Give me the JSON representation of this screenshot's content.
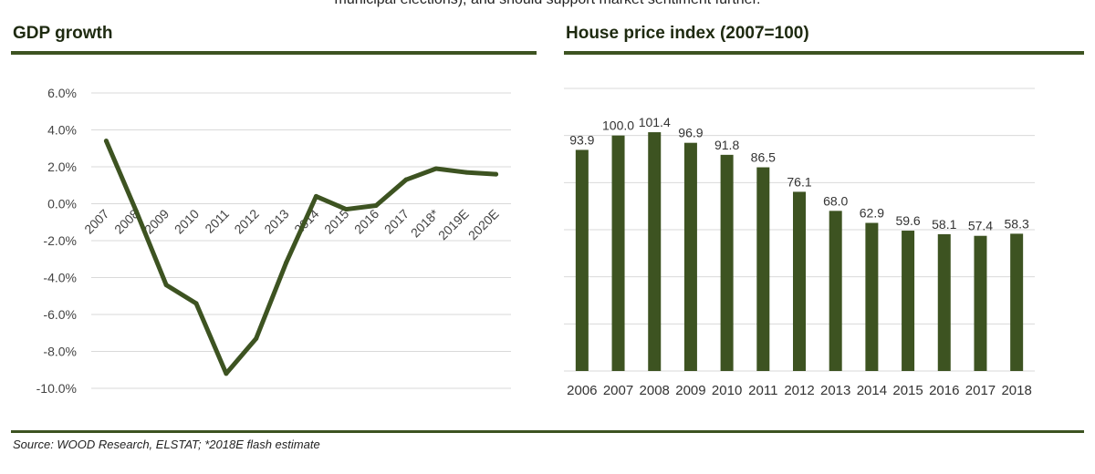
{
  "header": {
    "top_text": "municipal elections), and should support market sentiment further.",
    "left_title": "GDP growth",
    "right_title": "House price index (2007=100)"
  },
  "footer": {
    "source": "Source: WOOD Research, ELSTAT; *2018E flash estimate"
  },
  "colors": {
    "series": "#3d5321",
    "grid": "#d9d9d9",
    "rule": "#3d5321"
  },
  "chart_data": [
    {
      "type": "line",
      "title": "GDP growth",
      "categories": [
        "2007",
        "2008",
        "2009",
        "2010",
        "2011",
        "2012",
        "2013",
        "2014",
        "2015",
        "2016",
        "2017",
        "2018*",
        "2019E",
        "2020E"
      ],
      "values": [
        3.4,
        -0.4,
        -4.4,
        -5.4,
        -9.2,
        -7.3,
        -3.2,
        0.4,
        -0.3,
        -0.1,
        1.3,
        1.9,
        1.7,
        1.6
      ],
      "ylim": [
        -10,
        6
      ],
      "yticks": [
        "6.0%",
        "4.0%",
        "2.0%",
        "0.0%",
        "-2.0%",
        "-4.0%",
        "-6.0%",
        "-8.0%",
        "-10.0%"
      ],
      "xlabel": "",
      "ylabel": "",
      "grid": true
    },
    {
      "type": "bar",
      "title": "House price index (2007=100)",
      "categories": [
        "2006",
        "2007",
        "2008",
        "2009",
        "2010",
        "2011",
        "2012",
        "2013",
        "2014",
        "2015",
        "2016",
        "2017",
        "2018"
      ],
      "values": [
        93.9,
        100.0,
        101.4,
        96.9,
        91.8,
        86.5,
        76.1,
        68.0,
        62.9,
        59.6,
        58.1,
        57.4,
        58.3
      ],
      "labels": [
        "93.9",
        "100.0",
        "101.4",
        "96.9",
        "91.8",
        "86.5",
        "76.1",
        "68.0",
        "62.9",
        "59.6",
        "58.1",
        "57.4",
        "58.3"
      ],
      "ylim": [
        0,
        120
      ],
      "xlabel": "",
      "ylabel": "",
      "grid": true
    }
  ]
}
